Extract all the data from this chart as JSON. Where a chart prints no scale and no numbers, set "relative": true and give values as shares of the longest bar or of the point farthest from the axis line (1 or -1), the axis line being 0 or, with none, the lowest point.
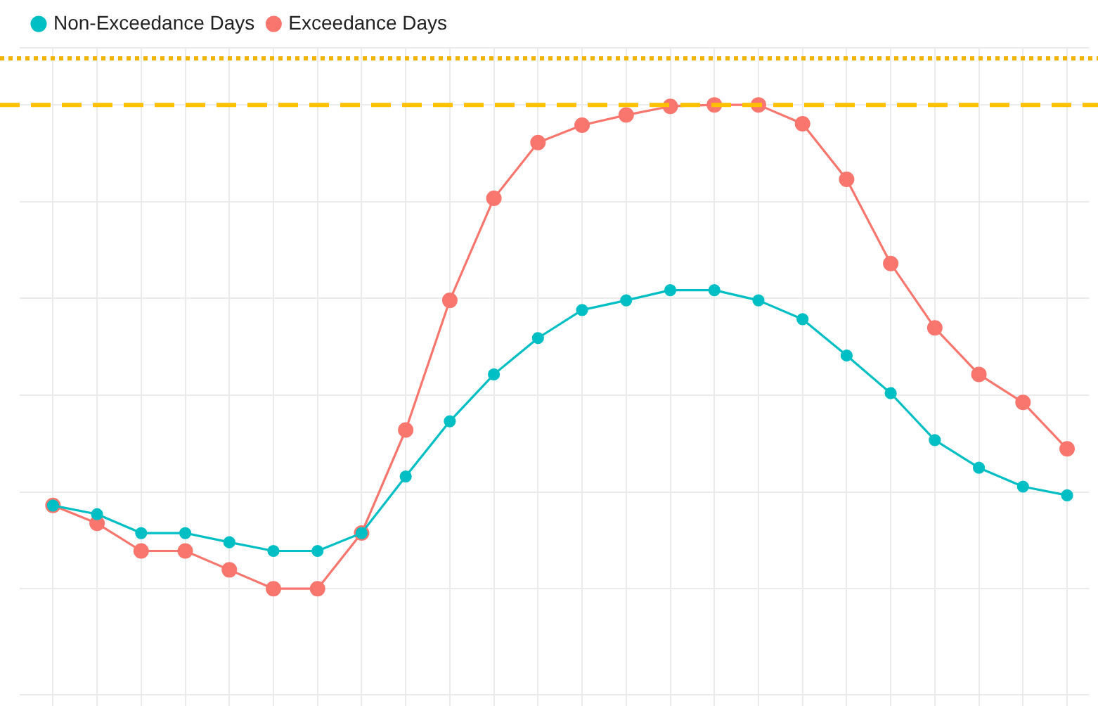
{
  "chart_data": {
    "type": "line",
    "relative": true,
    "categories": [
      null,
      null,
      null,
      null,
      null,
      null,
      null,
      null,
      null,
      null,
      null,
      null,
      null,
      null,
      null,
      null,
      null,
      null,
      null,
      null,
      null,
      null,
      null,
      null
    ],
    "series": [
      {
        "name": "Exceedance Days",
        "color": "#f8766d",
        "values": [
          0.172,
          0.135,
          0.078,
          0.078,
          0.039,
          0,
          0,
          0.115,
          0.328,
          0.596,
          0.807,
          0.922,
          0.958,
          0.979,
          0.997,
          1,
          1,
          0.961,
          0.846,
          0.672,
          0.539,
          0.443,
          0.385,
          0.289
        ]
      },
      {
        "name": "Non-Exceedance Days",
        "color": "#00bfc4",
        "values": [
          0.172,
          0.154,
          0.115,
          0.115,
          0.096,
          0.078,
          0.078,
          0.115,
          0.232,
          0.346,
          0.443,
          0.518,
          0.576,
          0.596,
          0.617,
          0.617,
          0.596,
          0.557,
          0.482,
          0.404,
          0.307,
          0.25,
          0.211,
          0.193
        ]
      }
    ],
    "ref_lines": [
      {
        "axis": "y",
        "value": 1,
        "color": "#ffc000",
        "line_style": "dashed"
      },
      {
        "axis": "y",
        "value": 1.096,
        "color": "#f0b400",
        "line_style": "dotted"
      }
    ],
    "grid": true,
    "legend": "top left",
    "marker": "circle",
    "line_style": "solid"
  }
}
